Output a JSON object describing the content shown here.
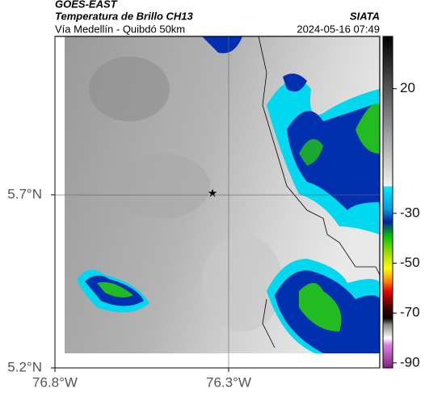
{
  "header": {
    "title": "GOES-EAST",
    "subtitle": "Temperatura de Brillo CH13",
    "place": "Vía Medellín - Quibdó 50km",
    "source": "SIATA",
    "datetime": "2024-05-16 07:49"
  },
  "map": {
    "xlim": [
      -76.8,
      -75.865
    ],
    "ylim": [
      5.2,
      6.158
    ],
    "xticks": [
      {
        "value": -76.8,
        "label": "76.8°W"
      },
      {
        "value": -76.3,
        "label": "76.3°W"
      }
    ],
    "yticks": [
      {
        "value": 5.2,
        "label": "5.2°N"
      },
      {
        "value": 5.7,
        "label": "5.7°N"
      }
    ],
    "grid": true
  },
  "colorbar": {
    "lim": [
      -92,
      41
    ],
    "ticks": [
      20,
      -30,
      -50,
      -70,
      -90
    ]
  }
}
